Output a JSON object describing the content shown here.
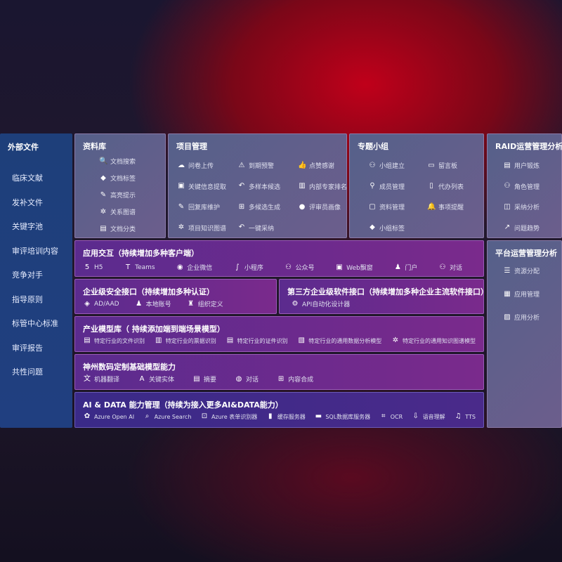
{
  "sidebar": {
    "title": "外部文件",
    "items": [
      "临床文献",
      "发补文件",
      "关键字池",
      "审评培训内容",
      "竞争对手",
      "指导原则",
      "标管中心标准",
      "审评报告",
      "共性问题"
    ]
  },
  "library": {
    "title": "资料库",
    "items": [
      {
        "icon": "doc-search-icon",
        "label": "文档搜索"
      },
      {
        "icon": "tag-icon",
        "label": "文档标签"
      },
      {
        "icon": "pen-icon",
        "label": "高亮提示"
      },
      {
        "icon": "graph-icon",
        "label": "关系图谱"
      },
      {
        "icon": "doc-category-icon",
        "label": "文档分类"
      }
    ]
  },
  "project": {
    "title": "项目管理",
    "items": [
      {
        "icon": "cloud-upload-icon",
        "label": "问卷上传"
      },
      {
        "icon": "alarm-icon",
        "label": "到期预警"
      },
      {
        "icon": "thumbs-up-icon",
        "label": "点赞感谢"
      },
      {
        "icon": "window-icon",
        "label": "关键信息提取"
      },
      {
        "icon": "reply-icon",
        "label": "多样本候选"
      },
      {
        "icon": "ranking-icon",
        "label": "内部专家排名"
      },
      {
        "icon": "edit-icon",
        "label": "回复库维护"
      },
      {
        "icon": "puzzle-icon",
        "label": "多候选生成"
      },
      {
        "icon": "user-icon",
        "label": "评审员画像"
      },
      {
        "icon": "graph-icon",
        "label": "项目知识图谱"
      },
      {
        "icon": "reply-icon",
        "label": "一键采纳"
      }
    ]
  },
  "group": {
    "title": "专题小组",
    "items": [
      {
        "icon": "users-icon",
        "label": "小组建立"
      },
      {
        "icon": "bbs-icon",
        "label": "留言板"
      },
      {
        "icon": "user-add-icon",
        "label": "成员管理"
      },
      {
        "icon": "clipboard-icon",
        "label": "代办列表"
      },
      {
        "icon": "folder-icon",
        "label": "资料管理"
      },
      {
        "icon": "bell-icon",
        "label": "事项提醒"
      },
      {
        "icon": "tag-icon",
        "label": "小组标签"
      }
    ]
  },
  "raid": {
    "title": "RAID运营管理分析",
    "items": [
      {
        "icon": "id-card-icon",
        "label": "用户锻炼"
      },
      {
        "icon": "users-icon",
        "label": "角色管理"
      },
      {
        "icon": "qa-icon",
        "label": "采纳分析"
      },
      {
        "icon": "trend-icon",
        "label": "问题趋势"
      }
    ]
  },
  "platform": {
    "title": "平台运营管理分析",
    "items": [
      {
        "icon": "list-icon",
        "label": "资源分配"
      },
      {
        "icon": "apps-icon",
        "label": "应用管理"
      },
      {
        "icon": "chart-icon",
        "label": "应用分析"
      }
    ]
  },
  "app": {
    "title": "应用交互（持续增加多种客户端）",
    "items": [
      {
        "icon": "html5-icon",
        "label": "H5"
      },
      {
        "icon": "teams-icon",
        "label": "Teams"
      },
      {
        "icon": "wechat-icon",
        "label": "企业微信"
      },
      {
        "icon": "miniprogram-icon",
        "label": "小程序"
      },
      {
        "icon": "users-icon",
        "label": "公众号"
      },
      {
        "icon": "window-icon",
        "label": "Web飘窗"
      },
      {
        "icon": "portal-icon",
        "label": "门户"
      },
      {
        "icon": "chat-users-icon",
        "label": "对话"
      }
    ]
  },
  "security": {
    "title": "企业级安全接口（持续增加多种认证）",
    "items": [
      {
        "icon": "ad-icon",
        "label": "AD/AAD"
      },
      {
        "icon": "account-icon",
        "label": "本地账号"
      },
      {
        "icon": "org-icon",
        "label": "组织定义"
      }
    ]
  },
  "third": {
    "title": "第三方企业级软件接口（持续增加多种企业主流软件接口）",
    "items": [
      {
        "icon": "gear-icon",
        "label": "API自动化设计器"
      }
    ]
  },
  "industry": {
    "title": "产业模型库（ 持续添加端到端场景模型）",
    "items": [
      {
        "icon": "file-icon",
        "label": "特定行业的文件识别"
      },
      {
        "icon": "receipt-icon",
        "label": "特定行业的票据识别"
      },
      {
        "icon": "id-card-icon",
        "label": "特定行业的证件识别"
      },
      {
        "icon": "image-icon",
        "label": "特定行业的通用数据分析模型"
      },
      {
        "icon": "graph-icon",
        "label": "特定行业的通用知识图谱模型"
      }
    ]
  },
  "base": {
    "title": "神州数码定制基础模型能力",
    "items": [
      {
        "icon": "translate-icon",
        "label": "机器翻译"
      },
      {
        "icon": "entity-icon",
        "label": "关键实体"
      },
      {
        "icon": "summary-icon",
        "label": "摘要"
      },
      {
        "icon": "chat-icon",
        "label": "对话"
      },
      {
        "icon": "puzzle-icon",
        "label": "内容合成"
      }
    ]
  },
  "ai": {
    "title": "AI & DATA 能力管理（持续为接入更多AI&DATA能力）",
    "items": [
      {
        "icon": "openai-icon",
        "label": "Azure Open AI"
      },
      {
        "icon": "search-icon",
        "label": "Azure Search"
      },
      {
        "icon": "form-icon",
        "label": "Azure 表单识别器"
      },
      {
        "icon": "cache-icon",
        "label": "缓存服务器"
      },
      {
        "icon": "sql-icon",
        "label": "SQL数据库服务器"
      },
      {
        "icon": "ocr-icon",
        "label": "OCR"
      },
      {
        "icon": "speech-icon",
        "label": "语音理解"
      },
      {
        "icon": "tts-icon",
        "label": "TTS"
      }
    ]
  }
}
